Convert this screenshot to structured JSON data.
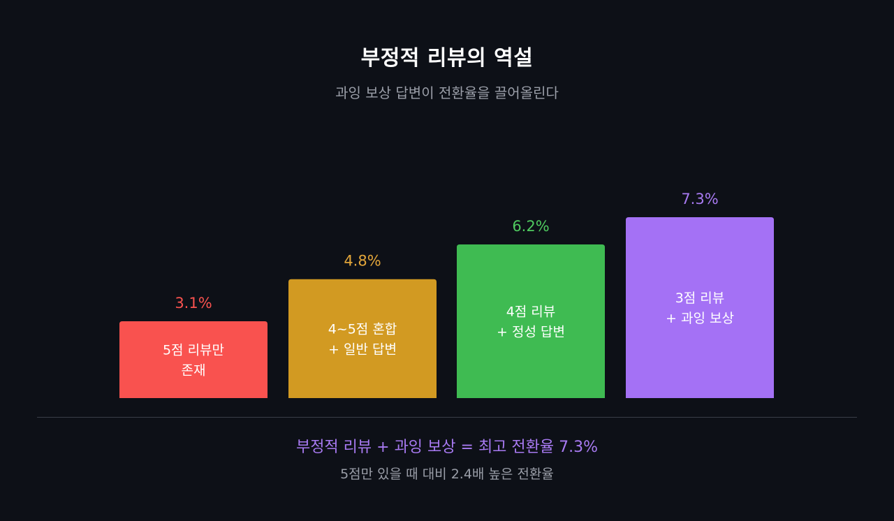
{
  "header": {
    "title": "부정적 리뷰의 역설",
    "subtitle": "과잉 보상 답변이 전환율을 끌어올린다"
  },
  "chart_data": {
    "type": "bar",
    "title": "부정적 리뷰의 역설",
    "subtitle": "과잉 보상 답변이 전환율을 끌어올린다",
    "unit": "%",
    "categories": [
      [
        "5점 리뷰만",
        "존재"
      ],
      [
        "4~5점 혼합",
        "+ 일반 답변"
      ],
      [
        "4점 리뷰",
        "+ 정성 답변"
      ],
      [
        "3점 리뷰",
        "+ 과잉 보상"
      ]
    ],
    "values": [
      3.1,
      4.8,
      6.2,
      7.3
    ],
    "value_labels": [
      "3.1%",
      "4.8%",
      "6.2%",
      "7.3%"
    ],
    "colors": [
      "#f9524f",
      "#d29a22",
      "#3fbb52",
      "#a471f5"
    ],
    "label_colors": [
      "#f9524f",
      "#e3a63a",
      "#4fca5f",
      "#a87af2"
    ],
    "ylim": [
      0,
      7.3
    ],
    "grid": false,
    "legend": "none"
  },
  "summary": {
    "main": "부정적 리뷰 + 과잉 보상 = 최고 전환율 7.3%",
    "sub": "5점만 있을 때 대비 2.4배 높은 전환율"
  }
}
